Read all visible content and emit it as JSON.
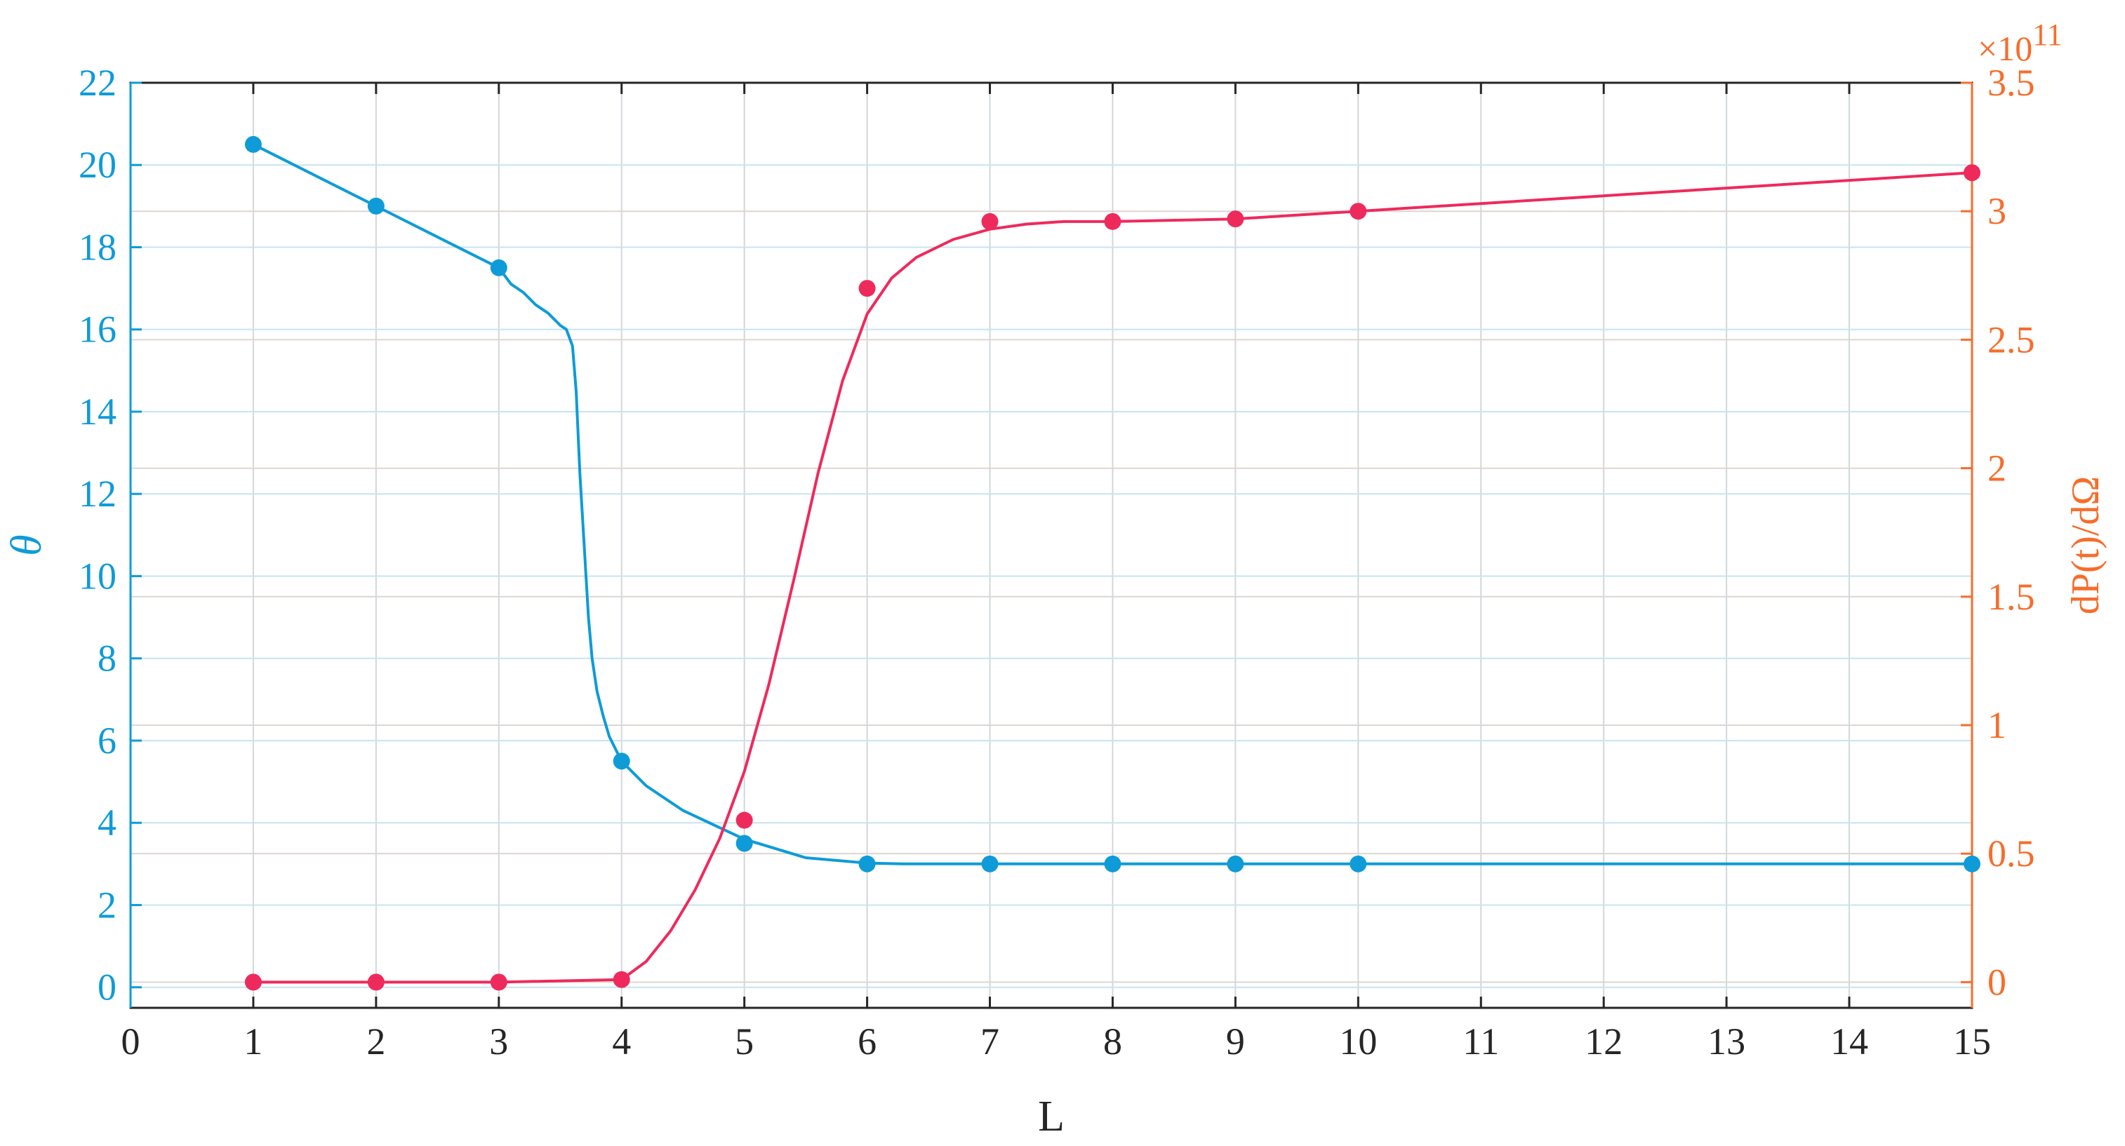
{
  "chart_data": {
    "type": "line",
    "xlabel": "L",
    "ylabel_left": "θ",
    "ylabel_right": "dP(t)/dΩ",
    "right_axis_exponent": "×10",
    "right_axis_exponent_power": "11",
    "xlim": [
      0,
      15
    ],
    "ylim_left": [
      -0.5,
      22
    ],
    "ylim_right": [
      -0.1,
      3.5
    ],
    "grid": true,
    "x_ticks": [
      0,
      1,
      2,
      3,
      4,
      5,
      6,
      7,
      8,
      9,
      10,
      11,
      12,
      13,
      14,
      15
    ],
    "y_left_ticks": [
      0,
      2,
      4,
      6,
      8,
      10,
      12,
      14,
      16,
      18,
      20,
      22
    ],
    "y_right_ticks": [
      0,
      0.5,
      1,
      1.5,
      2,
      2.5,
      3,
      3.5
    ],
    "colors": {
      "left": "#0e9bd8",
      "right": "#f76d2b",
      "red_series": "#ee2a5c",
      "grid": "#c8e3f0"
    },
    "series": [
      {
        "axis": "left",
        "color": "#0e9bd8",
        "points": {
          "x": [
            1,
            2,
            3,
            4,
            5,
            6,
            7,
            8,
            9,
            10,
            15
          ],
          "y": [
            20.5,
            19.0,
            17.5,
            5.5,
            3.5,
            3.0,
            3.0,
            3.0,
            3.0,
            3.0,
            3.0
          ]
        },
        "curve": {
          "x": [
            1,
            2,
            3,
            3.1,
            3.2,
            3.3,
            3.4,
            3.5,
            3.55,
            3.6,
            3.63,
            3.66,
            3.7,
            3.73,
            3.76,
            3.8,
            3.85,
            3.9,
            4.0,
            4.2,
            4.5,
            5.0,
            5.5,
            6.0,
            6.3,
            7,
            8,
            9,
            10,
            15
          ],
          "y": [
            20.5,
            19.0,
            17.5,
            17.1,
            16.9,
            16.6,
            16.4,
            16.1,
            16.0,
            15.6,
            14.5,
            12.5,
            10.5,
            9.0,
            8.0,
            7.2,
            6.6,
            6.1,
            5.5,
            4.9,
            4.3,
            3.6,
            3.15,
            3.02,
            3.0,
            3.0,
            3.0,
            3.0,
            3.0,
            3.0
          ]
        }
      },
      {
        "axis": "right",
        "color": "#ee2a5c",
        "points": {
          "x": [
            1,
            2,
            3,
            4,
            5,
            6,
            7,
            8,
            9,
            10,
            15
          ],
          "y": [
            0.0,
            0.0,
            0.0,
            0.01,
            0.63,
            2.7,
            2.96,
            2.96,
            2.97,
            3.0,
            3.15
          ]
        },
        "curve": {
          "x": [
            1,
            2,
            3,
            4,
            4.2,
            4.4,
            4.6,
            4.8,
            5.0,
            5.2,
            5.4,
            5.6,
            5.8,
            6.0,
            6.2,
            6.4,
            6.7,
            7.0,
            7.3,
            7.6,
            8,
            9,
            10,
            15
          ],
          "y": [
            0.0,
            0.0,
            0.0,
            0.01,
            0.08,
            0.2,
            0.36,
            0.56,
            0.82,
            1.16,
            1.56,
            1.98,
            2.34,
            2.6,
            2.74,
            2.82,
            2.89,
            2.93,
            2.95,
            2.96,
            2.96,
            2.97,
            3.0,
            3.15
          ]
        }
      }
    ]
  }
}
